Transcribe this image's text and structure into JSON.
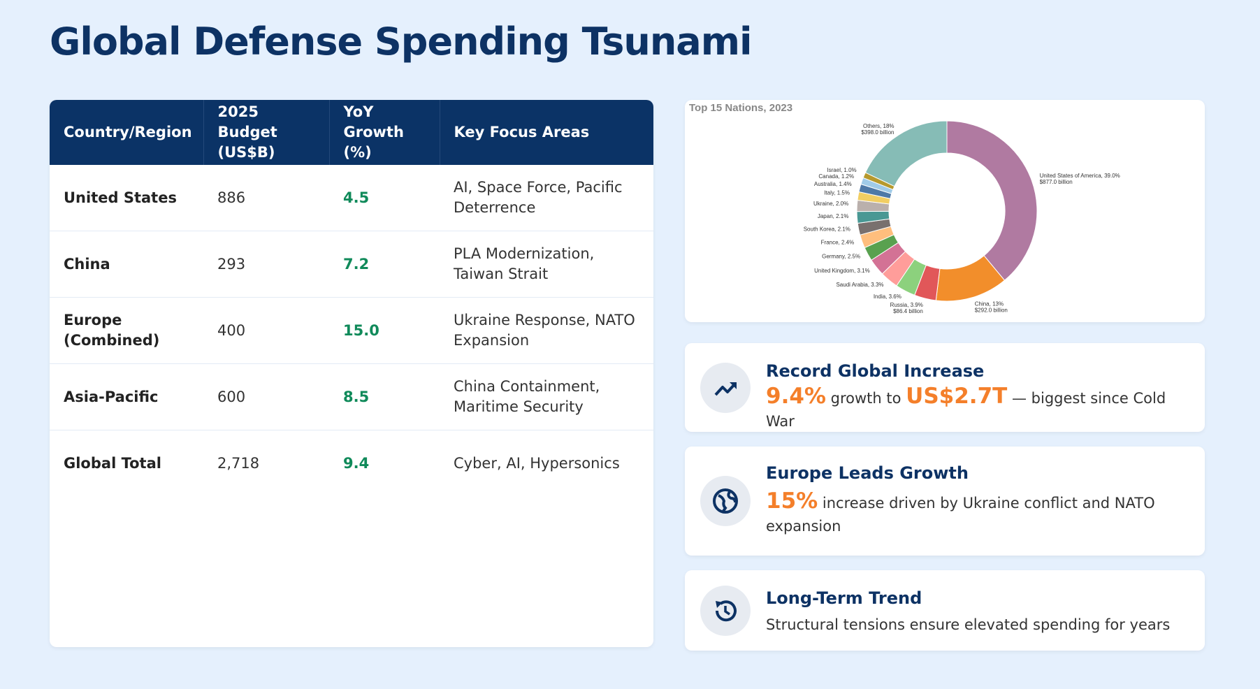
{
  "header": {
    "title": "Global Defense Spending Tsunami"
  },
  "table": {
    "headers": [
      "Country/Region",
      "2025 Budget (US$B)",
      "YoY Growth (%)",
      "Key Focus Areas"
    ],
    "rows": [
      [
        "United States",
        "886",
        "4.5",
        "AI, Space Force, Pacific Deterrence"
      ],
      [
        "China",
        "293",
        "7.2",
        "PLA Modernization, Taiwan Strait"
      ],
      [
        "Europe (Combined)",
        "400",
        "15.0",
        "Ukraine Response, NATO Expansion"
      ],
      [
        "Asia-Pacific",
        "600",
        "8.5",
        "China Containment, Maritime Security"
      ],
      [
        "Global Total",
        "2,718",
        "9.4",
        "Cyber, AI, Hypersonics"
      ]
    ]
  },
  "chart_data": {
    "type": "pie",
    "subtitle": "Top 15 Nations, 2023",
    "labels": [
      "United States of America, 39.0%",
      "China, 13%",
      "Russia, 3.9%",
      "India, 3.6%",
      "Saudi Arabia, 3.3%",
      "United Kingdom, 3.1%",
      "Germany, 2.5%",
      "France, 2.4%",
      "South Korea, 2.1%",
      "Japan, 2.1%",
      "Ukraine, 2.0%",
      "Italy, 1.5%",
      "Australia, 1.4%",
      "Canada, 1.2%",
      "Israel, 1.0%",
      "Others, 18%"
    ],
    "values": [
      39.0,
      13,
      3.9,
      3.6,
      3.3,
      3.1,
      2.5,
      2.4,
      2.1,
      2.1,
      2.0,
      1.5,
      1.4,
      1.2,
      1.0,
      18
    ],
    "amount_labels": [
      "$877.0 billion",
      "$292.0 billion",
      "$86.4 billion",
      null,
      null,
      null,
      null,
      null,
      null,
      null,
      null,
      null,
      null,
      null,
      null,
      "$398.0 billion"
    ],
    "colors": [
      "#b07aa1",
      "#f28e2b",
      "#e15759",
      "#8cd17d",
      "#ff9d9a",
      "#d37295",
      "#59a14f",
      "#ffbe7d",
      "#79706e",
      "#499894",
      "#bab0ac",
      "#f1ce63",
      "#4e79a7",
      "#a0cbe8",
      "#b6992d",
      "#86bcb6"
    ],
    "donut": true
  },
  "cards": [
    {
      "title": "Record Global Increase",
      "segments": [
        {
          "text": "9.4%",
          "emphasis": true
        },
        {
          "text": " growth to ",
          "emphasis": false
        },
        {
          "text": "US$2.7T",
          "emphasis": true
        },
        {
          "text": " — biggest since Cold War",
          "emphasis": false
        }
      ]
    },
    {
      "title": "Europe Leads Growth",
      "segments": [
        {
          "text": "15%",
          "emphasis": true
        },
        {
          "text": " increase driven by Ukraine conflict and NATO expansion",
          "emphasis": false
        }
      ]
    },
    {
      "title": "Long-Term Trend",
      "segments": [
        {
          "text": "Structural tensions ensure elevated spending for years",
          "emphasis": false
        }
      ]
    }
  ]
}
